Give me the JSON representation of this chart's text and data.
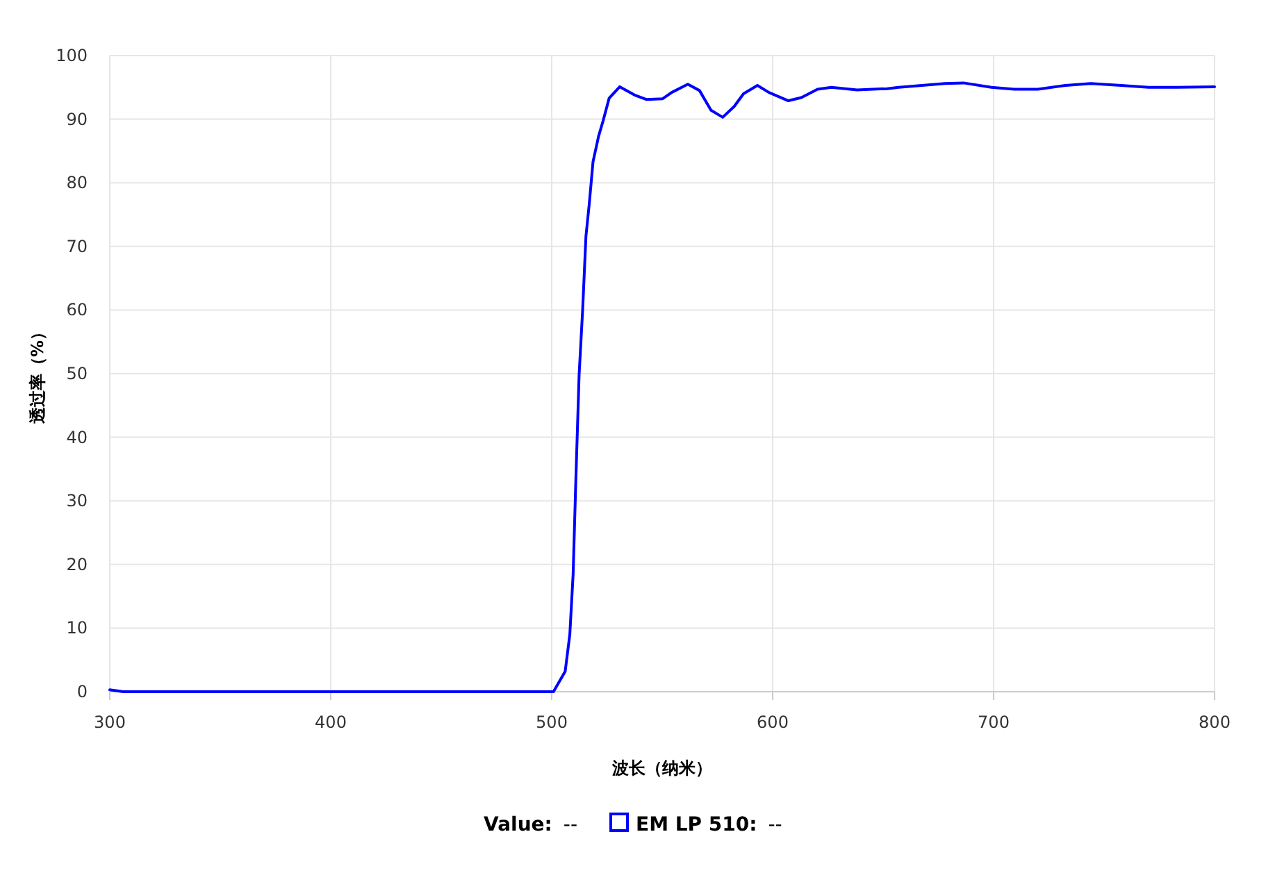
{
  "chart_data": {
    "type": "line",
    "xlabel": "波长（纳米）",
    "ylabel": "透过率（%）",
    "xlim": [
      300,
      800
    ],
    "xticks": [
      300,
      400,
      500,
      600,
      700,
      800
    ],
    "ylim": [
      0,
      100
    ],
    "yticks": [
      0,
      10,
      20,
      30,
      40,
      50,
      60,
      70,
      80,
      90,
      100
    ],
    "grid": true,
    "legend": "bottom",
    "marker": "none",
    "line_style": "solid",
    "annotations": [
      "Value:",
      "--",
      "--"
    ],
    "series": [
      {
        "name": "EM LP 510:",
        "color": "#0000ff",
        "x": [
          300,
          304,
          306,
          400,
          500,
          500.8,
          506.1,
          508.2,
          509.7,
          510.9,
          512.4,
          514.0,
          515.5,
          517.0,
          518.7,
          521.2,
          523.3,
          526.0,
          530.8,
          537.5,
          542.8,
          550.1,
          554.3,
          561.6,
          566.9,
          572.1,
          577.4,
          582.6,
          586.8,
          593.1,
          598.3,
          607.1,
          613.0,
          620.3,
          626.6,
          638.2,
          651.8,
          657,
          678,
          686.4,
          699,
          709.4,
          720,
          732.5,
          744,
          757.7,
          770.2,
          782.8,
          800
        ],
        "values": [
          0.3,
          0.1,
          0,
          0,
          0,
          0,
          3.2,
          9,
          18.5,
          33,
          49.8,
          60,
          71.6,
          76.7,
          83.3,
          87.3,
          89.8,
          93.3,
          95.1,
          93.8,
          93.1,
          93.2,
          94.2,
          95.5,
          94.5,
          91.4,
          90.3,
          92.0,
          94.0,
          95.3,
          94.2,
          92.9,
          93.4,
          94.7,
          95.0,
          94.6,
          94.8,
          95.0,
          95.6,
          95.7,
          95.0,
          94.7,
          94.7,
          95.3,
          95.6,
          95.3,
          95.0,
          95.0,
          95.1
        ]
      }
    ]
  }
}
